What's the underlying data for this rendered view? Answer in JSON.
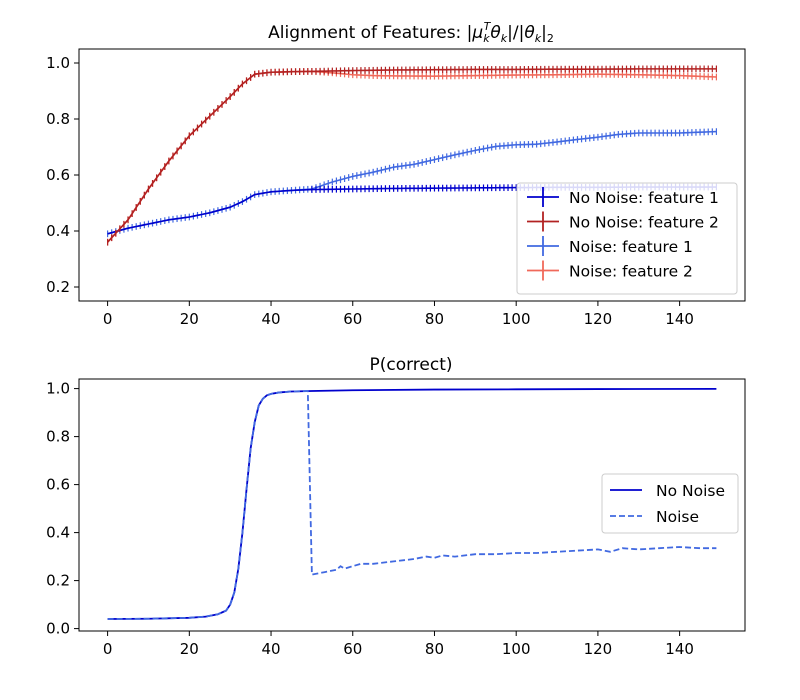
{
  "colors": {
    "nn_f1": "#0000cd",
    "nn_f2": "#b22222",
    "n_f1": "#4169e1",
    "n_f2": "#f0695a",
    "p_nn": "#0000cd",
    "p_n": "#4169e1"
  },
  "chart_data": [
    {
      "type": "line",
      "title_parts": {
        "prefix": "Alignment of Features: |",
        "mu": "μ",
        "mu_sub": "k",
        "mu_sup": "T",
        "theta1": "θ",
        "theta1_sub": "k",
        "mid": "|/|",
        "theta2": "θ",
        "theta2_sub": "k",
        "close": "|",
        "norm_sub": "2"
      },
      "xlim": [
        -7,
        156
      ],
      "ylim": [
        0.15,
        1.05
      ],
      "xticks": [
        "0",
        "20",
        "40",
        "60",
        "80",
        "100",
        "120",
        "140"
      ],
      "xtick_values": [
        0,
        20,
        40,
        60,
        80,
        100,
        120,
        140
      ],
      "yticks": [
        "0.2",
        "0.4",
        "0.6",
        "0.8",
        "1.0"
      ],
      "ytick_values": [
        0.2,
        0.4,
        0.6,
        0.8,
        1.0
      ],
      "error_bars": true,
      "legend_position": "center-right",
      "series": [
        {
          "name": "No Noise: feature 1",
          "x": [
            0,
            5,
            10,
            15,
            20,
            25,
            30,
            33,
            36,
            40,
            45,
            50,
            60,
            70,
            80,
            90,
            100,
            110,
            120,
            130,
            140,
            149
          ],
          "y": [
            0.39,
            0.41,
            0.425,
            0.44,
            0.45,
            0.465,
            0.485,
            0.505,
            0.53,
            0.54,
            0.545,
            0.548,
            0.55,
            0.552,
            0.553,
            0.554,
            0.555,
            0.556,
            0.556,
            0.557,
            0.557,
            0.557
          ]
        },
        {
          "name": "No Noise: feature 2",
          "x": [
            0,
            5,
            10,
            15,
            20,
            25,
            30,
            33,
            36,
            40,
            45,
            50,
            60,
            70,
            80,
            90,
            100,
            110,
            120,
            130,
            140,
            149
          ],
          "y": [
            0.36,
            0.44,
            0.55,
            0.65,
            0.74,
            0.81,
            0.88,
            0.925,
            0.96,
            0.967,
            0.969,
            0.97,
            0.973,
            0.975,
            0.976,
            0.977,
            0.977,
            0.978,
            0.978,
            0.979,
            0.979,
            0.979
          ]
        },
        {
          "name": "Noise: feature 1",
          "x": [
            0,
            5,
            10,
            15,
            20,
            25,
            30,
            33,
            36,
            40,
            45,
            50,
            55,
            60,
            65,
            70,
            75,
            80,
            85,
            90,
            95,
            100,
            105,
            110,
            115,
            120,
            125,
            130,
            135,
            140,
            145,
            149
          ],
          "y": [
            0.39,
            0.41,
            0.425,
            0.44,
            0.45,
            0.465,
            0.485,
            0.505,
            0.53,
            0.54,
            0.545,
            0.55,
            0.575,
            0.595,
            0.61,
            0.628,
            0.638,
            0.655,
            0.672,
            0.688,
            0.702,
            0.708,
            0.71,
            0.718,
            0.727,
            0.735,
            0.745,
            0.75,
            0.75,
            0.75,
            0.753,
            0.755
          ]
        },
        {
          "name": "Noise: feature 2",
          "x": [
            0,
            5,
            10,
            15,
            20,
            25,
            30,
            33,
            36,
            40,
            45,
            50,
            55,
            60,
            65,
            70,
            80,
            90,
            100,
            110,
            120,
            130,
            140,
            149
          ],
          "y": [
            0.36,
            0.44,
            0.55,
            0.65,
            0.74,
            0.81,
            0.88,
            0.925,
            0.96,
            0.967,
            0.969,
            0.97,
            0.965,
            0.958,
            0.955,
            0.954,
            0.953,
            0.955,
            0.957,
            0.958,
            0.96,
            0.958,
            0.955,
            0.95
          ]
        }
      ]
    },
    {
      "type": "line",
      "title": "P(correct)",
      "xlim": [
        -7,
        156
      ],
      "ylim": [
        -0.01,
        1.04
      ],
      "xticks": [
        "0",
        "20",
        "40",
        "60",
        "80",
        "100",
        "120",
        "140"
      ],
      "xtick_values": [
        0,
        20,
        40,
        60,
        80,
        100,
        120,
        140
      ],
      "yticks": [
        "0.0",
        "0.2",
        "0.4",
        "0.6",
        "0.8",
        "1.0"
      ],
      "ytick_values": [
        0.0,
        0.2,
        0.4,
        0.6,
        0.8,
        1.0
      ],
      "legend_position": "center-right",
      "series": [
        {
          "name": "No Noise",
          "style": "solid",
          "x": [
            0,
            10,
            20,
            24,
            27,
            29,
            30,
            31,
            32,
            33,
            34,
            35,
            36,
            37,
            38,
            39,
            40,
            42,
            45,
            50,
            60,
            80,
            100,
            120,
            149
          ],
          "y": [
            0.04,
            0.041,
            0.045,
            0.05,
            0.06,
            0.075,
            0.1,
            0.15,
            0.25,
            0.4,
            0.58,
            0.75,
            0.86,
            0.93,
            0.958,
            0.972,
            0.978,
            0.984,
            0.988,
            0.99,
            0.993,
            0.996,
            0.997,
            0.998,
            0.999
          ]
        },
        {
          "name": "Noise",
          "style": "dashed",
          "x": [
            0,
            10,
            20,
            24,
            27,
            29,
            30,
            31,
            32,
            33,
            34,
            35,
            36,
            37,
            38,
            39,
            40,
            42,
            45,
            49,
            50,
            53,
            56,
            57,
            58,
            60,
            62,
            65,
            70,
            75,
            78,
            80,
            82,
            85,
            90,
            95,
            100,
            105,
            110,
            115,
            120,
            123,
            126,
            130,
            135,
            140,
            145,
            149
          ],
          "y": [
            0.04,
            0.041,
            0.045,
            0.05,
            0.06,
            0.075,
            0.1,
            0.15,
            0.25,
            0.4,
            0.58,
            0.75,
            0.86,
            0.93,
            0.958,
            0.972,
            0.978,
            0.984,
            0.988,
            0.99,
            0.225,
            0.235,
            0.245,
            0.26,
            0.25,
            0.26,
            0.27,
            0.27,
            0.28,
            0.29,
            0.3,
            0.295,
            0.305,
            0.3,
            0.31,
            0.31,
            0.315,
            0.315,
            0.32,
            0.325,
            0.33,
            0.32,
            0.335,
            0.33,
            0.335,
            0.34,
            0.335,
            0.335
          ]
        }
      ]
    }
  ]
}
